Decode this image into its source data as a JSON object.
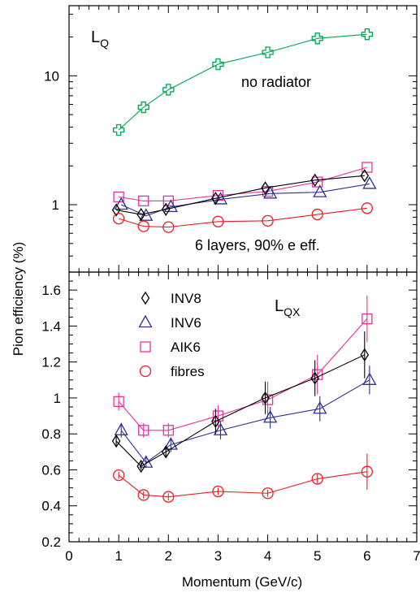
{
  "chart_data": [
    {
      "panel": "top",
      "type": "line",
      "yscale": "log",
      "ylim": [
        0.3,
        35
      ],
      "xlim": [
        0,
        7
      ],
      "ytick_labels": [
        {
          "v": 1,
          "t": "1"
        },
        {
          "v": 10,
          "t": "10"
        }
      ],
      "panel_label": "L",
      "panel_label_sub": "Q",
      "annotations": [
        "no radiator",
        "6 layers, 90% e eff."
      ],
      "series": [
        {
          "key": "green",
          "color": "#00a651",
          "marker": "plus",
          "x": [
            1,
            1.5,
            2,
            3,
            4,
            5,
            6
          ],
          "y": [
            3.8,
            5.7,
            7.8,
            12.3,
            15.2,
            19.5,
            21.0
          ]
        },
        {
          "key": "AIK6",
          "color": "#e6329b",
          "marker": "square",
          "x": [
            1,
            1.5,
            2,
            3,
            4,
            5,
            6
          ],
          "y": [
            1.15,
            1.07,
            1.07,
            1.18,
            1.27,
            1.5,
            1.95
          ]
        },
        {
          "key": "INV6",
          "color": "#2e3192",
          "marker": "triangle",
          "x": [
            1.05,
            1.55,
            2.05,
            3.05,
            4.05,
            5.05,
            6.05
          ],
          "y": [
            1.0,
            0.82,
            0.96,
            1.1,
            1.22,
            1.25,
            1.45
          ]
        },
        {
          "key": "INV8",
          "color": "#000000",
          "marker": "diamond",
          "x": [
            0.95,
            1.45,
            1.95,
            2.95,
            3.95,
            4.95,
            5.95
          ],
          "y": [
            0.91,
            0.84,
            0.92,
            1.12,
            1.35,
            1.55,
            1.68
          ]
        },
        {
          "key": "fibres",
          "color": "#ed1c24",
          "marker": "circle",
          "x": [
            1,
            1.5,
            2,
            3,
            4,
            5,
            6
          ],
          "y": [
            0.78,
            0.68,
            0.67,
            0.74,
            0.75,
            0.84,
            0.94
          ]
        }
      ]
    },
    {
      "panel": "bottom",
      "type": "line",
      "yscale": "linear",
      "ylim": [
        0.2,
        1.7
      ],
      "xlim": [
        0,
        7
      ],
      "yticks": [
        0.2,
        0.4,
        0.6,
        0.8,
        1,
        1.2,
        1.4,
        1.6
      ],
      "ytick_labels": [
        "0.2",
        "0.4",
        "0.6",
        "0.8",
        "1",
        "1.2",
        "1.4",
        "1.6"
      ],
      "xticks": [
        0,
        1,
        2,
        3,
        4,
        5,
        6,
        7
      ],
      "xtick_labels": [
        "0",
        "1",
        "2",
        "3",
        "4",
        "5",
        "6",
        "7"
      ],
      "panel_label": "L",
      "panel_label_sub": "QX",
      "legend": [
        {
          "label": "INV8",
          "marker": "diamond",
          "color": "#000000"
        },
        {
          "label": "INV6",
          "marker": "triangle",
          "color": "#2e3192"
        },
        {
          "label": "AIK6",
          "marker": "square",
          "color": "#e6329b"
        },
        {
          "label": "fibres",
          "marker": "circle",
          "color": "#ed1c24"
        }
      ],
      "series": [
        {
          "key": "AIK6",
          "color": "#e6329b",
          "marker": "square",
          "x": [
            1,
            1.5,
            2,
            3,
            4,
            5,
            6
          ],
          "y": [
            0.98,
            0.82,
            0.82,
            0.9,
            0.99,
            1.13,
            1.44
          ],
          "err": [
            0.05,
            0.04,
            0.04,
            0.06,
            0.1,
            0.11,
            0.13
          ]
        },
        {
          "key": "INV6",
          "color": "#2e3192",
          "marker": "triangle",
          "x": [
            1.05,
            1.55,
            2.05,
            3.05,
            4.05,
            5.05,
            6.05
          ],
          "y": [
            0.82,
            0.64,
            0.74,
            0.82,
            0.89,
            0.94,
            1.1
          ],
          "err": [
            0.04,
            0.03,
            0.04,
            0.05,
            0.06,
            0.07,
            0.08
          ]
        },
        {
          "key": "INV8",
          "color": "#000000",
          "marker": "diamond",
          "x": [
            0.95,
            1.45,
            1.95,
            2.95,
            3.95,
            4.95,
            5.95
          ],
          "y": [
            0.76,
            0.62,
            0.7,
            0.87,
            1.0,
            1.11,
            1.24
          ],
          "err": [
            0.03,
            0.02,
            0.03,
            0.07,
            0.09,
            0.1,
            0.13
          ]
        },
        {
          "key": "fibres",
          "color": "#ed1c24",
          "marker": "circle",
          "x": [
            1,
            1.5,
            2,
            3,
            4,
            5,
            6
          ],
          "y": [
            0.57,
            0.46,
            0.45,
            0.48,
            0.47,
            0.55,
            0.59
          ],
          "err": [
            0.02,
            0.02,
            0.02,
            0.02,
            0.02,
            0.03,
            0.1
          ]
        }
      ]
    }
  ],
  "axes": {
    "ylabel": "Pion efficiency (%)",
    "xlabel": "Momentum (GeV/c)"
  }
}
